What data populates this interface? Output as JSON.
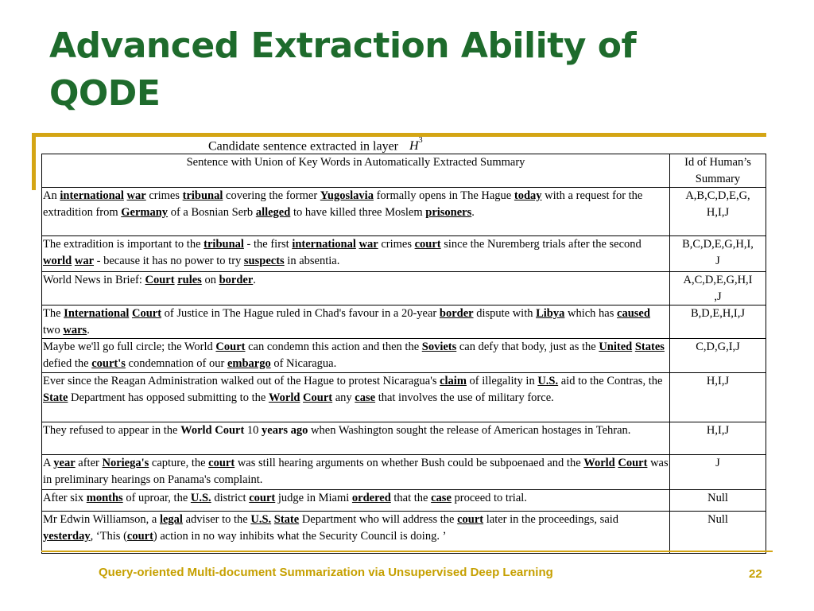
{
  "slide": {
    "title_line1": "Advanced Extraction Ability of",
    "title_line2": "QODE",
    "caption": "Candidate sentence extracted in layer",
    "caption_symbol": "H",
    "caption_superscript": "3",
    "footer": "Query-oriented Multi-document Summarization via Unsupervised Deep Learning",
    "page_number": "22"
  },
  "table": {
    "headers": [
      "Sentence with Union of Key Words in Automatically Extracted Summary",
      "Id of Human’s Summary"
    ],
    "rows": [
      {
        "segments": [
          [
            "An ",
            0
          ],
          [
            "international",
            1
          ],
          [
            " ",
            0
          ],
          [
            "war",
            1
          ],
          [
            " crimes ",
            0
          ],
          [
            "tribunal",
            1
          ],
          [
            " covering the former ",
            0
          ],
          [
            "Yugoslavia",
            1
          ],
          [
            " formally opens in The Hague ",
            0
          ],
          [
            "today",
            1
          ],
          [
            " with a request for the extradition from ",
            0
          ],
          [
            "Germany",
            1
          ],
          [
            " of a Bosnian Serb ",
            0
          ],
          [
            "alleged",
            1
          ],
          [
            " to have killed three Moslem ",
            0
          ],
          [
            "prisoners",
            1
          ],
          [
            ".",
            0
          ]
        ],
        "ids": "A,B,C,D,E,G,\nH,I,J",
        "height": 61
      },
      {
        "segments": [
          [
            "The extradition is important to the ",
            0
          ],
          [
            "tribunal",
            1
          ],
          [
            " - the first ",
            0
          ],
          [
            "international",
            1
          ],
          [
            " ",
            0
          ],
          [
            "war",
            1
          ],
          [
            " crimes ",
            0
          ],
          [
            "court",
            1
          ],
          [
            " since the Nuremberg trials after the second ",
            0
          ],
          [
            "world",
            1
          ],
          [
            " ",
            0
          ],
          [
            "war",
            1
          ],
          [
            " - because it has no power to try ",
            0
          ],
          [
            "suspects",
            1
          ],
          [
            " in absentia.",
            0
          ]
        ],
        "ids": "B,C,D,E,G,H,I,\nJ",
        "height": 45
      },
      {
        "segments": [
          [
            "World News in Brief: ",
            0
          ],
          [
            "Court",
            1
          ],
          [
            " ",
            0
          ],
          [
            "rules",
            1
          ],
          [
            " on ",
            0
          ],
          [
            "border",
            1
          ],
          [
            ".",
            0
          ]
        ],
        "ids": "A,C,D,E,G,H,I\n,J",
        "height": 41
      },
      {
        "segments": [
          [
            "The ",
            0
          ],
          [
            "International",
            1
          ],
          [
            " ",
            0
          ],
          [
            "Court",
            1
          ],
          [
            " of Justice in The Hague ruled in Chad's favour in a 20-year ",
            0
          ],
          [
            "border",
            1
          ],
          [
            " dispute with ",
            0
          ],
          [
            "Libya",
            1
          ],
          [
            " which has ",
            0
          ],
          [
            "caused",
            1
          ],
          [
            " two ",
            0
          ],
          [
            "wars",
            1
          ],
          [
            ".",
            0
          ]
        ],
        "ids": "B,D,E,H,I,J",
        "height": 41
      },
      {
        "segments": [
          [
            "Maybe we'll go full circle; the World ",
            0
          ],
          [
            "Court",
            1
          ],
          [
            " can condemn this action and then the ",
            0
          ],
          [
            "Soviets",
            1
          ],
          [
            " can defy that body, just as the ",
            0
          ],
          [
            "United",
            1
          ],
          [
            " ",
            0
          ],
          [
            "States",
            1
          ],
          [
            " defied the ",
            0
          ],
          [
            "court's",
            1
          ],
          [
            " condemnation of our ",
            0
          ],
          [
            "embargo",
            1
          ],
          [
            " of Nicaragua.",
            0
          ]
        ],
        "ids": "C,D,G,I,J",
        "height": 43
      },
      {
        "segments": [
          [
            "Ever since the Reagan Administration walked out of the Hague to protest Nicaragua's ",
            0
          ],
          [
            "claim",
            1
          ],
          [
            " of illegality in ",
            0
          ],
          [
            "U.S.",
            1
          ],
          [
            " aid to the Contras, the ",
            0
          ],
          [
            "State",
            1
          ],
          [
            " Department has opposed submitting to the ",
            0
          ],
          [
            "World",
            1
          ],
          [
            " ",
            0
          ],
          [
            "Court",
            1
          ],
          [
            " any ",
            0
          ],
          [
            "case",
            1
          ],
          [
            " that involves the use of military force.",
            0
          ]
        ],
        "ids": "H,I,J",
        "height": 62
      },
      {
        "segments": [
          [
            "They refused to appear in the ",
            0
          ],
          [
            "World Court",
            2
          ],
          [
            " 10 ",
            0
          ],
          [
            "years ago",
            2
          ],
          [
            " when Washington sought the release of American hostages in Tehran.",
            0
          ]
        ],
        "ids": "H,I,J",
        "height": 41
      },
      {
        "segments": [
          [
            "A ",
            0
          ],
          [
            "year",
            1
          ],
          [
            " after ",
            0
          ],
          [
            "Noriega's",
            1
          ],
          [
            " capture, the ",
            0
          ],
          [
            "court",
            1
          ],
          [
            " was still hearing arguments on whether Bush could be subpoenaed and the ",
            0
          ],
          [
            "World",
            1
          ],
          [
            " ",
            0
          ],
          [
            "Court",
            1
          ],
          [
            " was in preliminary hearings on Panama's complaint.",
            0
          ]
        ],
        "ids": "J",
        "height": 44
      },
      {
        "segments": [
          [
            "After six ",
            0
          ],
          [
            "months",
            1
          ],
          [
            " of uproar, the ",
            0
          ],
          [
            "U.S.",
            1
          ],
          [
            " district ",
            0
          ],
          [
            "court",
            1
          ],
          [
            " judge in Miami ",
            0
          ],
          [
            "ordered",
            1
          ],
          [
            " that the ",
            0
          ],
          [
            "case",
            1
          ],
          [
            " proceed to trial.",
            0
          ]
        ],
        "ids": "Null",
        "height": 27
      },
      {
        "segments": [
          [
            "Mr Edwin Williamson, a ",
            0
          ],
          [
            "legal",
            1
          ],
          [
            " adviser to the ",
            0
          ],
          [
            "U.S.",
            1
          ],
          [
            " ",
            0
          ],
          [
            "State",
            1
          ],
          [
            " Department who will address the ",
            0
          ],
          [
            "court",
            1
          ],
          [
            " later in the proceedings, said ",
            0
          ],
          [
            "yesterday",
            1
          ],
          [
            ", ‘This (",
            0
          ],
          [
            "court",
            1
          ],
          [
            ") action in no way inhibits what the Security Council is doing. ’",
            0
          ]
        ],
        "ids": "Null",
        "height": 53
      }
    ]
  }
}
